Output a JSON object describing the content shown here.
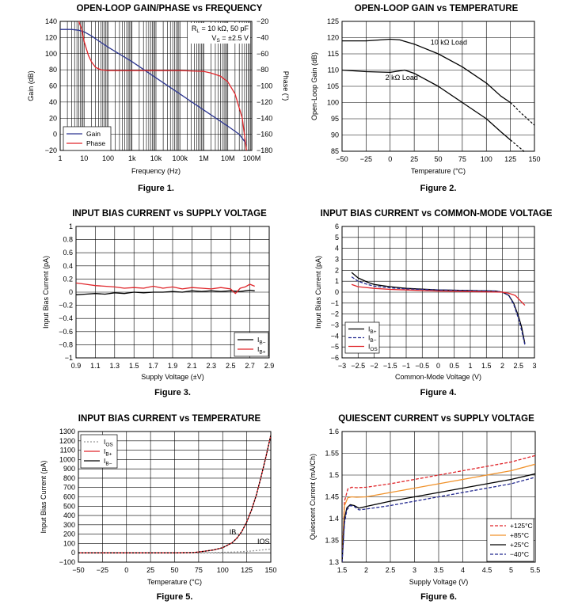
{
  "colors": {
    "black": "#000000",
    "red": "#e0262b",
    "blue": "#2c3590",
    "orange": "#f0922b",
    "navy": "#23298f",
    "grid": "#000000"
  },
  "chart_data": [
    {
      "id": "fig1",
      "type": "line",
      "title": "OPEN-LOOP GAIN/PHASE vs FREQUENCY",
      "caption": "Figure 1.",
      "xlabel": "Frequency (Hz)",
      "ylabel": "Gain (dB)",
      "y2label": "Phase (°)",
      "xscale": "log",
      "xlim": [
        1,
        100000000
      ],
      "ylim": [
        -20,
        140
      ],
      "y2lim": [
        -180,
        -20
      ],
      "xticks": [
        1,
        10,
        100,
        1000,
        10000,
        100000,
        1000000,
        10000000,
        100000000
      ],
      "xticklabels": [
        "1",
        "10",
        "100",
        "1k",
        "10k",
        "100k",
        "1M",
        "10M",
        "100M"
      ],
      "yticks": [
        -20,
        0,
        20,
        40,
        60,
        80,
        100,
        120,
        140
      ],
      "yticklabels": [
        "−20",
        "0",
        "20",
        "40",
        "60",
        "80",
        "100",
        "120",
        "140"
      ],
      "y2ticks": [
        -180,
        -160,
        -140,
        -120,
        -100,
        -80,
        -60,
        -40,
        -20
      ],
      "y2ticklabels": [
        "−180",
        "−160",
        "−140",
        "−120",
        "−100",
        "−80",
        "−60",
        "−40",
        "−20"
      ],
      "annotation_lines": [
        "RL = 10 kΩ, 50 pF",
        "VS = ±2.5 V"
      ],
      "legend": {
        "position": "bottom-left",
        "entries": [
          "Gain",
          "Phase"
        ]
      },
      "series": [
        {
          "name": "Gain",
          "color": "#2c3590",
          "axis": "y",
          "x": [
            1,
            3,
            6,
            10,
            20,
            50,
            100,
            1000,
            10000,
            100000,
            1000000,
            10000000,
            30000000,
            60000000
          ],
          "y": [
            130,
            130,
            129,
            127,
            122,
            114,
            108,
            90,
            70,
            50,
            30,
            10,
            0,
            -12
          ]
        },
        {
          "name": "Phase",
          "color": "#e0262b",
          "axis": "y2",
          "x": [
            6,
            8,
            10,
            15,
            20,
            30,
            50,
            100,
            1000,
            10000,
            100000,
            1000000,
            2000000,
            5000000,
            10000000,
            20000000,
            40000000,
            60000000
          ],
          "y": [
            -20,
            -30,
            -45,
            -62,
            -70,
            -77,
            -80,
            -81,
            -81,
            -81,
            -81,
            -82,
            -84,
            -88,
            -95,
            -110,
            -140,
            -180
          ]
        }
      ]
    },
    {
      "id": "fig2",
      "type": "line",
      "title": "OPEN-LOOP GAIN vs TEMPERATURE",
      "caption": "Figure 2.",
      "xlabel": "Temperature (°C)",
      "ylabel": "Open-Loop Gain (dB)",
      "xlim": [
        -50,
        150
      ],
      "ylim": [
        85,
        125
      ],
      "xticks": [
        -50,
        -25,
        0,
        25,
        50,
        75,
        100,
        125,
        150
      ],
      "xticklabels": [
        "−50",
        "−25",
        "0",
        "25",
        "50",
        "75",
        "100",
        "125",
        "150"
      ],
      "yticks": [
        85,
        90,
        95,
        100,
        105,
        110,
        115,
        120,
        125
      ],
      "yticklabels": [
        "85",
        "90",
        "95",
        "100",
        "105",
        "110",
        "115",
        "120",
        "125"
      ],
      "annotations": [
        {
          "text": "10 kΩ Load",
          "x": 42,
          "y": 117.8
        },
        {
          "text": "2 kΩ Load",
          "x": -5,
          "y": 107
        }
      ],
      "series": [
        {
          "name": "10 kΩ Load",
          "color": "#000000",
          "x": [
            -50,
            -25,
            -10,
            0,
            10,
            25,
            50,
            75,
            100,
            115,
            125
          ],
          "y": [
            119,
            119,
            119.3,
            119.5,
            119.3,
            118,
            115,
            111,
            106,
            102,
            100
          ],
          "extrapolated": {
            "x": [
              125,
              137,
              150
            ],
            "y": [
              100,
              96.5,
              93
            ]
          }
        },
        {
          "name": "2 kΩ Load",
          "color": "#000000",
          "x": [
            -50,
            -25,
            0,
            15,
            25,
            50,
            75,
            100,
            115,
            125
          ],
          "y": [
            110,
            109.5,
            109.3,
            110,
            109,
            105,
            100,
            95,
            91,
            88.5
          ],
          "extrapolated": {
            "x": [
              125,
              137,
              150
            ],
            "y": [
              88.5,
              85.5,
              82
            ]
          }
        }
      ]
    },
    {
      "id": "fig3",
      "type": "line",
      "title": "INPUT BIAS CURRENT vs SUPPLY VOLTAGE",
      "caption": "Figure 3.",
      "xlabel": "Supply Voltage (±V)",
      "ylabel": "Input Bias Current (pA)",
      "xlim": [
        0.9,
        2.9
      ],
      "ylim": [
        -1,
        1
      ],
      "xticks": [
        0.9,
        1.1,
        1.3,
        1.5,
        1.7,
        1.9,
        2.1,
        2.3,
        2.5,
        2.7,
        2.9
      ],
      "xticklabels": [
        "0.9",
        "1.1",
        "1.3",
        "1.5",
        "1.7",
        "1.9",
        "2.1",
        "2.3",
        "2.5",
        "2.7",
        "2.9"
      ],
      "yticks": [
        -1,
        -0.8,
        -0.6,
        -0.4,
        -0.2,
        0,
        0.2,
        0.4,
        0.6,
        0.8,
        1
      ],
      "yticklabels": [
        "−1",
        "−0.8",
        "−0.6",
        "−0.4",
        "−0.2",
        "0",
        "0.2",
        "0.4",
        "0.6",
        "0.8",
        "1"
      ],
      "legend": {
        "position": "bottom-right",
        "entries": [
          "IB−",
          "IB+"
        ]
      },
      "series": [
        {
          "name": "IB−",
          "color": "#000000",
          "x": [
            0.9,
            1.0,
            1.1,
            1.2,
            1.3,
            1.4,
            1.5,
            1.6,
            1.7,
            1.8,
            1.9,
            2.0,
            2.1,
            2.2,
            2.3,
            2.4,
            2.5,
            2.6,
            2.7,
            2.75
          ],
          "y": [
            -0.04,
            -0.03,
            -0.02,
            -0.03,
            -0.01,
            -0.02,
            0.0,
            -0.01,
            0.0,
            0.0,
            0.01,
            0.0,
            0.02,
            0.01,
            0.02,
            0.01,
            0.02,
            0.01,
            0.03,
            0.02
          ]
        },
        {
          "name": "IB+",
          "color": "#e0262b",
          "x": [
            0.9,
            1.0,
            1.1,
            1.2,
            1.3,
            1.4,
            1.5,
            1.6,
            1.7,
            1.8,
            1.9,
            2.0,
            2.1,
            2.2,
            2.3,
            2.4,
            2.5,
            2.55,
            2.6,
            2.65,
            2.7,
            2.75
          ],
          "y": [
            0.14,
            0.12,
            0.1,
            0.09,
            0.08,
            0.06,
            0.07,
            0.06,
            0.09,
            0.06,
            0.08,
            0.05,
            0.07,
            0.06,
            0.05,
            0.07,
            0.05,
            -0.02,
            0.06,
            0.08,
            0.12,
            0.09
          ]
        }
      ]
    },
    {
      "id": "fig4",
      "type": "line",
      "title": "INPUT BIAS CURRENT vs COMMON-MODE VOLTAGE",
      "caption": "Figure 4.",
      "xlabel": "Common-Mode Voltage (V)",
      "ylabel": "Input Bias Current (pA)",
      "xlim": [
        -3,
        3
      ],
      "ylim": [
        -6,
        6
      ],
      "xticks": [
        -3,
        -2.5,
        -2,
        -1.5,
        -1,
        -0.5,
        0,
        0.5,
        1,
        1.5,
        2,
        2.5,
        3
      ],
      "xticklabels": [
        "−3",
        "−2.5",
        "−2",
        "−1.5",
        "−1",
        "−0.5",
        "0",
        "0.5",
        "1",
        "1.5",
        "2",
        "2.5",
        "3"
      ],
      "yticks": [
        -6,
        -5,
        -4,
        -3,
        -2,
        -1,
        0,
        1,
        2,
        3,
        4,
        5,
        6
      ],
      "yticklabels": [
        "−6",
        "−5",
        "−4",
        "−3",
        "−2",
        "−1",
        "0",
        "1",
        "2",
        "3",
        "4",
        "5",
        "6"
      ],
      "legend": {
        "position": "bottom-left",
        "entries": [
          "IB+",
          "IB−",
          "IOS"
        ]
      },
      "series": [
        {
          "name": "IB+",
          "color": "#000000",
          "dash": "",
          "x": [
            -2.7,
            -2.5,
            -2.2,
            -2.0,
            -1.5,
            -1.0,
            0,
            1.0,
            1.8,
            2.0,
            2.2,
            2.35,
            2.5,
            2.6,
            2.7
          ],
          "y": [
            1.8,
            1.3,
            0.9,
            0.7,
            0.5,
            0.35,
            0.2,
            0.15,
            0.1,
            0.0,
            -0.3,
            -1.0,
            -2.2,
            -3.2,
            -4.7
          ]
        },
        {
          "name": "IB−",
          "color": "#23298f",
          "dash": "4,2",
          "x": [
            -2.7,
            -2.5,
            -2.2,
            -2.0,
            -1.5,
            -1.0,
            0,
            1.0,
            1.8,
            2.0,
            2.2,
            2.35,
            2.5,
            2.6,
            2.7
          ],
          "y": [
            1.4,
            1.0,
            0.7,
            0.55,
            0.4,
            0.3,
            0.2,
            0.15,
            0.1,
            0.0,
            -0.3,
            -1.1,
            -2.4,
            -3.5,
            -4.8
          ]
        },
        {
          "name": "IOS",
          "color": "#e0262b",
          "dash": "",
          "x": [
            -2.7,
            -2.5,
            -2.0,
            -1.5,
            -1.0,
            0,
            1.0,
            2.0,
            2.2,
            2.4,
            2.5,
            2.6,
            2.7
          ],
          "y": [
            0.7,
            0.5,
            0.35,
            0.25,
            0.2,
            0.1,
            0.05,
            0.0,
            -0.1,
            -0.3,
            -0.6,
            -0.9,
            -1.2
          ]
        }
      ]
    },
    {
      "id": "fig5",
      "type": "line",
      "title": "INPUT BIAS CURRENT vs TEMPERATURE",
      "caption": "Figure 5.",
      "xlabel": "Temperature (°C)",
      "ylabel": "Input Bias Current (pA)",
      "xlim": [
        -50,
        150
      ],
      "ylim": [
        -100,
        1300
      ],
      "xticks": [
        -50,
        -25,
        0,
        25,
        50,
        75,
        100,
        125,
        150
      ],
      "xticklabels": [
        "−50",
        "−25",
        "0",
        "25",
        "50",
        "75",
        "100",
        "125",
        "150"
      ],
      "yticks": [
        -100,
        0,
        100,
        200,
        300,
        400,
        500,
        600,
        700,
        800,
        900,
        1000,
        1100,
        1200,
        1300
      ],
      "yticklabels": [
        "−100",
        "0",
        "100",
        "200",
        "300",
        "400",
        "500",
        "600",
        "700",
        "800",
        "900",
        "1000",
        "1100",
        "1200",
        "1300"
      ],
      "legend": {
        "position": "top-left",
        "entries": [
          "IOS",
          "IB+",
          "IB−"
        ]
      },
      "annotations": [
        {
          "text": "IB",
          "x": 107,
          "y": 195
        },
        {
          "text": "IOS",
          "x": 136,
          "y": 95
        }
      ],
      "series": [
        {
          "name": "IOS",
          "color": "#999999",
          "dash": "2,2",
          "x": [
            -50,
            0,
            50,
            75,
            100,
            110,
            120,
            125,
            130,
            140,
            150
          ],
          "y": [
            0,
            0,
            0,
            2,
            5,
            8,
            12,
            15,
            20,
            30,
            40
          ]
        },
        {
          "name": "IB+",
          "color": "#e0262b",
          "dash": "",
          "x": [
            -50,
            0,
            50,
            70,
            80,
            90,
            100,
            110,
            115,
            120,
            125,
            130,
            135,
            140,
            145,
            150
          ],
          "y": [
            0,
            0,
            0,
            3,
            15,
            30,
            55,
            110,
            160,
            230,
            330,
            460,
            620,
            820,
            1030,
            1260
          ]
        },
        {
          "name": "IB−",
          "color": "#000000",
          "dash": "2,2",
          "x": [
            -50,
            0,
            50,
            70,
            80,
            90,
            100,
            110,
            115,
            120,
            125,
            130,
            135,
            140,
            145,
            150
          ],
          "y": [
            0,
            0,
            0,
            3,
            15,
            30,
            55,
            110,
            160,
            230,
            330,
            460,
            620,
            820,
            1030,
            1260
          ]
        }
      ]
    },
    {
      "id": "fig6",
      "type": "line",
      "title": "QUIESCENT CURRENT vs SUPPLY VOLTAGE",
      "caption": "Figure 6.",
      "xlabel": "Supply Voltage (V)",
      "ylabel": "Quiescent Current (mA/Ch)",
      "xlim": [
        1.5,
        5.5
      ],
      "ylim": [
        1.3,
        1.6
      ],
      "xticks": [
        1.5,
        2,
        2.5,
        3,
        3.5,
        4,
        4.5,
        5,
        5.5
      ],
      "xticklabels": [
        "1.5",
        "2",
        "2.5",
        "3",
        "3.5",
        "4",
        "4.5",
        "5",
        "5.5"
      ],
      "yticks": [
        1.3,
        1.35,
        1.4,
        1.45,
        1.5,
        1.55,
        1.6
      ],
      "yticklabels": [
        "1.3",
        "1.35",
        "1.4",
        "1.45",
        "1.5",
        "1.55",
        "1.6"
      ],
      "legend": {
        "position": "bottom-right",
        "entries": [
          "+125°C",
          "+85°C",
          "+25°C",
          "−40°C"
        ]
      },
      "series": [
        {
          "name": "+125°C",
          "color": "#e0262b",
          "dash": "4,2",
          "x": [
            1.5,
            1.55,
            1.62,
            1.7,
            1.8,
            2,
            2.5,
            3,
            3.5,
            4,
            4.5,
            5,
            5.5
          ],
          "y": [
            1.3,
            1.44,
            1.468,
            1.472,
            1.471,
            1.472,
            1.48,
            1.49,
            1.5,
            1.51,
            1.52,
            1.53,
            1.545
          ]
        },
        {
          "name": "+85°C",
          "color": "#f0922b",
          "dash": "",
          "x": [
            1.5,
            1.55,
            1.62,
            1.7,
            1.8,
            2,
            2.5,
            3,
            3.5,
            4,
            4.5,
            5,
            5.5
          ],
          "y": [
            1.3,
            1.43,
            1.448,
            1.45,
            1.449,
            1.45,
            1.46,
            1.47,
            1.48,
            1.49,
            1.5,
            1.51,
            1.525
          ]
        },
        {
          "name": "+25°C",
          "color": "#000000",
          "dash": "",
          "x": [
            1.5,
            1.55,
            1.6,
            1.67,
            1.75,
            1.85,
            2,
            2.5,
            3,
            3.5,
            4,
            4.5,
            5,
            5.5
          ],
          "y": [
            1.3,
            1.4,
            1.425,
            1.432,
            1.43,
            1.424,
            1.428,
            1.44,
            1.45,
            1.46,
            1.47,
            1.48,
            1.49,
            1.503
          ]
        },
        {
          "name": "−40°C",
          "color": "#23298f",
          "dash": "4,2",
          "x": [
            1.5,
            1.55,
            1.6,
            1.67,
            1.75,
            1.85,
            2,
            2.5,
            3,
            3.5,
            4,
            4.5,
            5,
            5.5
          ],
          "y": [
            1.3,
            1.39,
            1.42,
            1.43,
            1.428,
            1.42,
            1.422,
            1.43,
            1.44,
            1.45,
            1.46,
            1.47,
            1.48,
            1.495
          ]
        }
      ]
    }
  ]
}
